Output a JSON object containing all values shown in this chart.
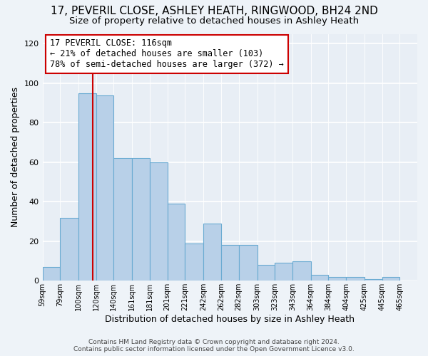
{
  "title": "17, PEVERIL CLOSE, ASHLEY HEATH, RINGWOOD, BH24 2ND",
  "subtitle": "Size of property relative to detached houses in Ashley Heath",
  "xlabel": "Distribution of detached houses by size in Ashley Heath",
  "ylabel": "Number of detached properties",
  "footer_line1": "Contains HM Land Registry data © Crown copyright and database right 2024.",
  "footer_line2": "Contains public sector information licensed under the Open Government Licence v3.0.",
  "annotation_line1": "17 PEVERIL CLOSE: 116sqm",
  "annotation_line2": "← 21% of detached houses are smaller (103)",
  "annotation_line3": "78% of semi-detached houses are larger (372) →",
  "bar_color": "#b8d0e8",
  "bar_edge_color": "#6aabd2",
  "ref_line_color": "#cc0000",
  "ref_line_x": 116,
  "categories": [
    "59sqm",
    "79sqm",
    "100sqm",
    "120sqm",
    "140sqm",
    "161sqm",
    "181sqm",
    "201sqm",
    "221sqm",
    "242sqm",
    "262sqm",
    "282sqm",
    "303sqm",
    "323sqm",
    "343sqm",
    "364sqm",
    "384sqm",
    "404sqm",
    "425sqm",
    "445sqm",
    "465sqm"
  ],
  "bin_edges": [
    59,
    79,
    100,
    120,
    140,
    161,
    181,
    201,
    221,
    242,
    262,
    282,
    303,
    323,
    343,
    364,
    384,
    404,
    425,
    445,
    465,
    485
  ],
  "values": [
    7,
    32,
    95,
    94,
    62,
    62,
    60,
    39,
    19,
    29,
    18,
    18,
    8,
    9,
    10,
    3,
    2,
    2,
    1,
    2,
    0
  ],
  "ylim": [
    0,
    125
  ],
  "yticks": [
    0,
    20,
    40,
    60,
    80,
    100,
    120
  ],
  "background_color": "#eef3f8",
  "axes_background_color": "#e8eef5",
  "grid_color": "#ffffff",
  "title_fontsize": 11,
  "subtitle_fontsize": 9.5,
  "xlabel_fontsize": 9,
  "ylabel_fontsize": 9
}
